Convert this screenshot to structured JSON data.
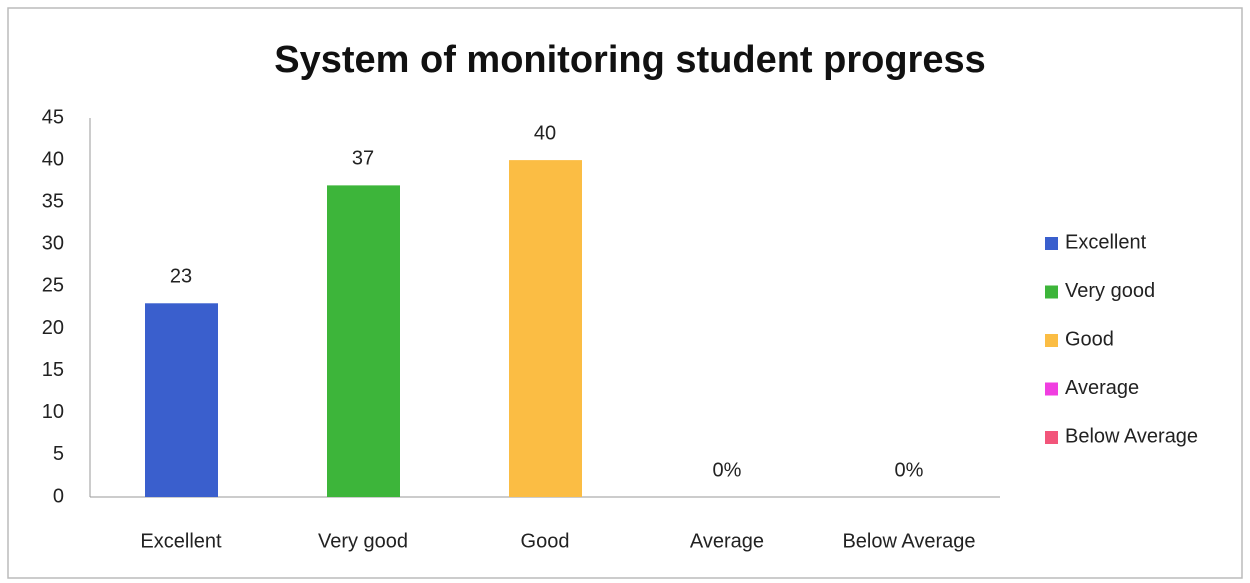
{
  "chart_data": {
    "type": "bar",
    "title": "System of monitoring student progress",
    "categories": [
      "Excellent",
      "Very good",
      "Good",
      "Average",
      "Below Average"
    ],
    "values": [
      23,
      37,
      40,
      0,
      0
    ],
    "value_labels": [
      "23",
      "37",
      "40",
      "0%",
      "0%"
    ],
    "colors": [
      "#3a5fcd",
      "#3db53a",
      "#fbbd44",
      "#f03ee0",
      "#f2557a"
    ],
    "ylim": [
      0,
      45
    ],
    "yticks": [
      0,
      5,
      10,
      15,
      20,
      25,
      30,
      35,
      40,
      45
    ],
    "grid": false,
    "legend": "right"
  }
}
